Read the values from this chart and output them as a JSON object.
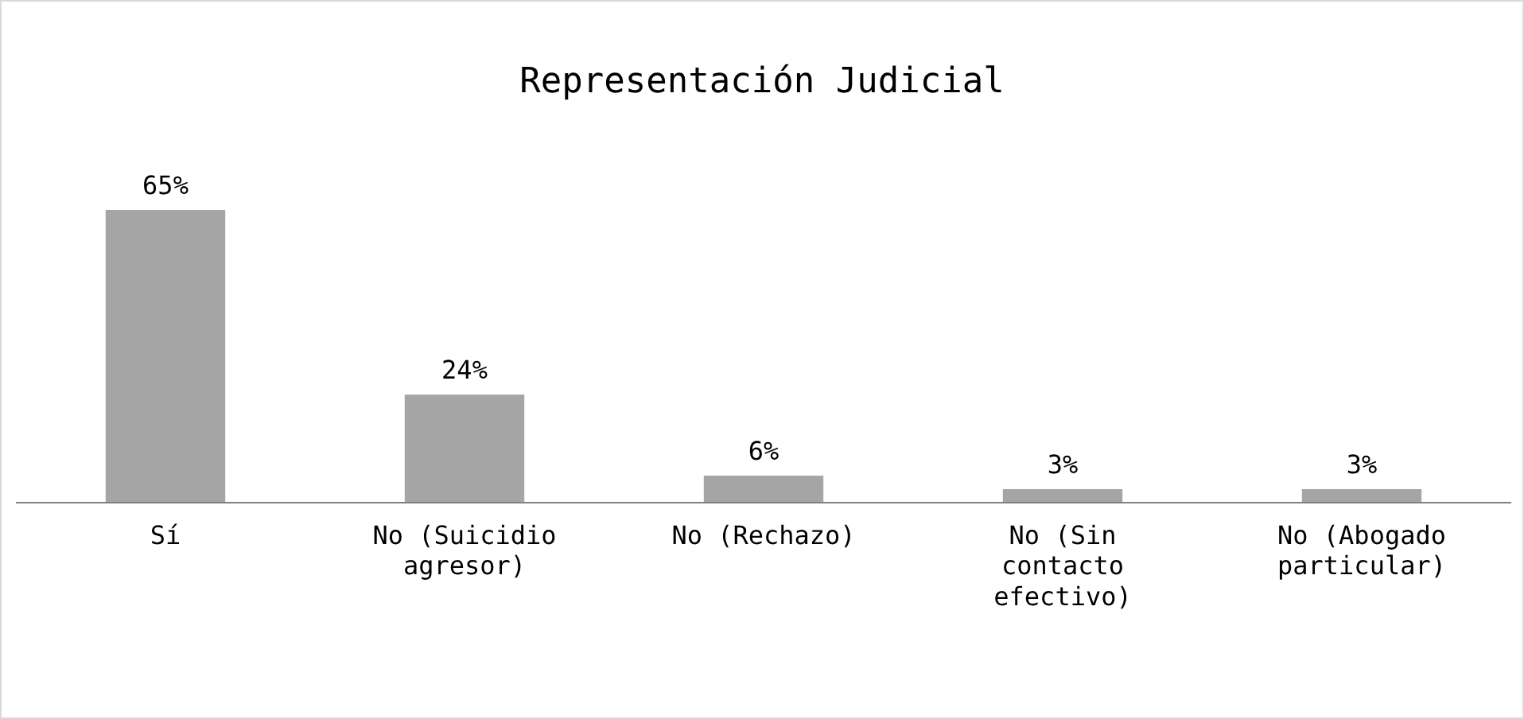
{
  "chart_data": {
    "type": "bar",
    "title": "Representación Judicial",
    "categories": [
      "Sí",
      "No (Suicidio agresor)",
      "No (Rechazo)",
      "No (Sin contacto efectivo)",
      "No (Abogado particular)"
    ],
    "values": [
      65,
      24,
      6,
      3,
      3
    ],
    "value_labels": [
      "65%",
      "24%",
      "6%",
      "3%",
      "3%"
    ],
    "color": "#a5a5a5"
  }
}
